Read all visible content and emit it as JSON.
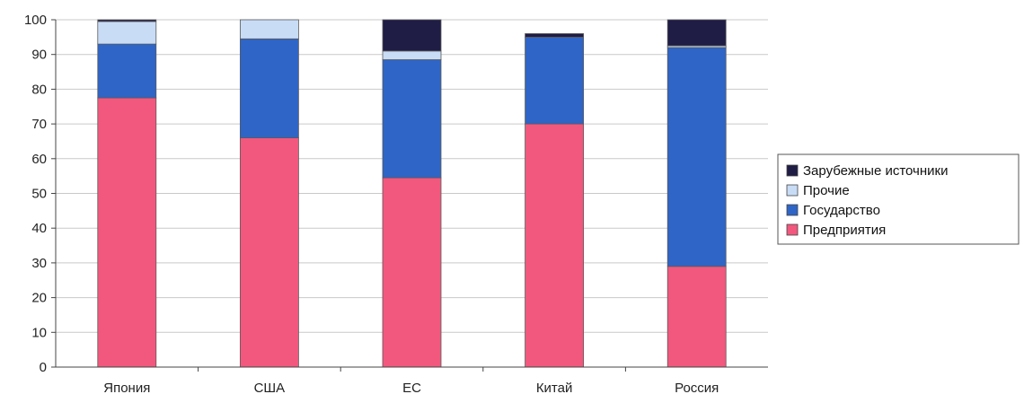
{
  "chart_data": {
    "type": "bar",
    "stacked": true,
    "categories": [
      "Япония",
      "США",
      "ЕС",
      "Китай",
      "Россия"
    ],
    "series": [
      {
        "name": "Предприятия",
        "color": "#f2587e",
        "values": [
          77.5,
          66,
          54.5,
          70,
          29
        ]
      },
      {
        "name": "Государство",
        "color": "#2f65c6",
        "values": [
          15.5,
          28.5,
          34,
          25,
          63
        ]
      },
      {
        "name": "Прочие",
        "color": "#c8dcf6",
        "values": [
          6.5,
          5.5,
          2.5,
          0,
          0.5
        ]
      },
      {
        "name": "Зарубежные источники",
        "color": "#1f1c45",
        "values": [
          0.5,
          0,
          9,
          1,
          7.5
        ]
      }
    ],
    "ylim": [
      0,
      100
    ],
    "yticks": [
      0,
      10,
      20,
      30,
      40,
      50,
      60,
      70,
      80,
      90,
      100
    ],
    "grid": true,
    "legend": "right",
    "legend_order": [
      "Зарубежные источники",
      "Прочие",
      "Государство",
      "Предприятия"
    ]
  }
}
